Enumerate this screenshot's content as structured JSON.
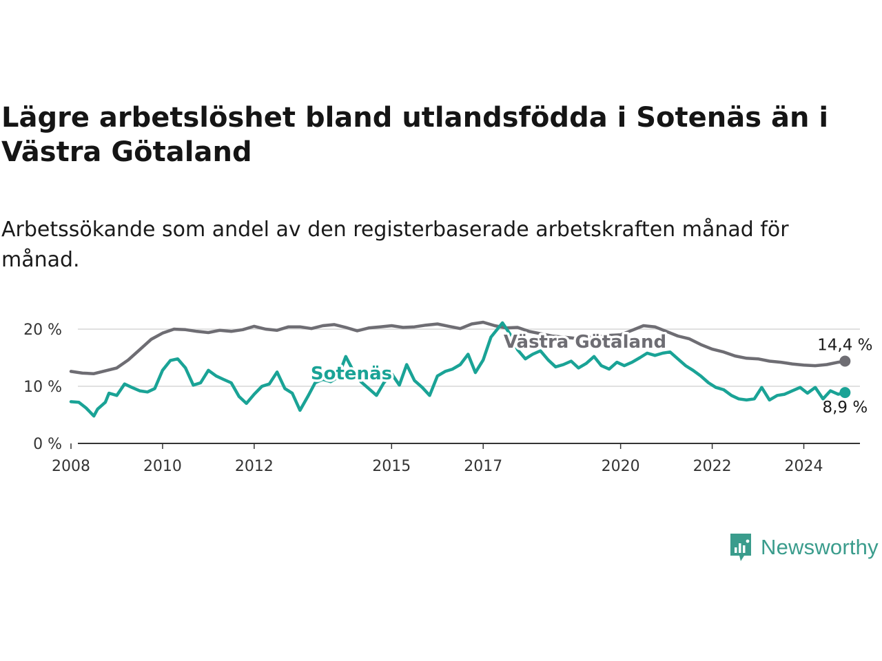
{
  "title": "Lägre arbetslöshet bland utlandsfödda i Sotenäs än i Västra Götaland",
  "subtitle": "Arbetssökande som andel av den registerbaserade arbetskraften månad för månad.",
  "brand": {
    "name": "Newsworthy",
    "color": "#3a9c8c"
  },
  "chart_data": {
    "type": "line",
    "xlim": [
      2008,
      2025
    ],
    "ylim": [
      0,
      20
    ],
    "y_ticks": [
      {
        "value": 0,
        "label": "0 %"
      },
      {
        "value": 10,
        "label": "10 %"
      },
      {
        "value": 20,
        "label": "20 %"
      }
    ],
    "x_ticks": [
      {
        "value": 2008,
        "label": "2008"
      },
      {
        "value": 2010,
        "label": "2010"
      },
      {
        "value": 2012,
        "label": "2012"
      },
      {
        "value": 2015,
        "label": "2015"
      },
      {
        "value": 2017,
        "label": "2017"
      },
      {
        "value": 2020,
        "label": "2020"
      },
      {
        "value": 2022,
        "label": "2022"
      },
      {
        "value": 2024,
        "label": "2024"
      }
    ],
    "grid": "horizontal",
    "series": [
      {
        "name": "Västra Götaland",
        "color": "#6e6d73",
        "end_label": "14,4 %",
        "points": [
          [
            2008.0,
            12.6
          ],
          [
            2008.25,
            12.3
          ],
          [
            2008.5,
            12.2
          ],
          [
            2008.75,
            12.7
          ],
          [
            2009.0,
            13.2
          ],
          [
            2009.25,
            14.6
          ],
          [
            2009.5,
            16.4
          ],
          [
            2009.75,
            18.2
          ],
          [
            2010.0,
            19.3
          ],
          [
            2010.25,
            20.0
          ],
          [
            2010.5,
            19.9
          ],
          [
            2010.75,
            19.6
          ],
          [
            2011.0,
            19.4
          ],
          [
            2011.25,
            19.8
          ],
          [
            2011.5,
            19.6
          ],
          [
            2011.75,
            19.9
          ],
          [
            2012.0,
            20.5
          ],
          [
            2012.25,
            20.0
          ],
          [
            2012.5,
            19.8
          ],
          [
            2012.75,
            20.4
          ],
          [
            2013.0,
            20.4
          ],
          [
            2013.25,
            20.1
          ],
          [
            2013.5,
            20.6
          ],
          [
            2013.75,
            20.8
          ],
          [
            2014.0,
            20.3
          ],
          [
            2014.25,
            19.7
          ],
          [
            2014.5,
            20.2
          ],
          [
            2014.75,
            20.4
          ],
          [
            2015.0,
            20.6
          ],
          [
            2015.25,
            20.3
          ],
          [
            2015.5,
            20.4
          ],
          [
            2015.75,
            20.7
          ],
          [
            2016.0,
            20.9
          ],
          [
            2016.25,
            20.5
          ],
          [
            2016.5,
            20.1
          ],
          [
            2016.75,
            20.9
          ],
          [
            2017.0,
            21.2
          ],
          [
            2017.25,
            20.6
          ],
          [
            2017.5,
            20.2
          ],
          [
            2017.75,
            20.3
          ],
          [
            2018.0,
            19.6
          ],
          [
            2018.25,
            19.2
          ],
          [
            2018.5,
            18.8
          ],
          [
            2018.75,
            18.6
          ],
          [
            2019.0,
            18.4
          ],
          [
            2019.25,
            18.5
          ],
          [
            2019.5,
            18.7
          ],
          [
            2019.75,
            18.9
          ],
          [
            2020.0,
            19.0
          ],
          [
            2020.25,
            19.8
          ],
          [
            2020.5,
            20.6
          ],
          [
            2020.75,
            20.4
          ],
          [
            2021.0,
            19.6
          ],
          [
            2021.25,
            18.8
          ],
          [
            2021.5,
            18.3
          ],
          [
            2021.75,
            17.3
          ],
          [
            2022.0,
            16.5
          ],
          [
            2022.25,
            16.0
          ],
          [
            2022.5,
            15.3
          ],
          [
            2022.75,
            14.9
          ],
          [
            2023.0,
            14.8
          ],
          [
            2023.25,
            14.4
          ],
          [
            2023.5,
            14.2
          ],
          [
            2023.75,
            13.9
          ],
          [
            2024.0,
            13.7
          ],
          [
            2024.25,
            13.6
          ],
          [
            2024.5,
            13.8
          ],
          [
            2024.75,
            14.2
          ],
          [
            2024.9,
            14.4
          ]
        ]
      },
      {
        "name": "Sotenäs",
        "color": "#1aa396",
        "end_label": "8,9 %",
        "points": [
          [
            2008.0,
            7.3
          ],
          [
            2008.17,
            7.2
          ],
          [
            2008.33,
            6.2
          ],
          [
            2008.5,
            4.8
          ],
          [
            2008.58,
            6.0
          ],
          [
            2008.75,
            7.2
          ],
          [
            2008.83,
            8.8
          ],
          [
            2009.0,
            8.4
          ],
          [
            2009.17,
            10.4
          ],
          [
            2009.33,
            9.8
          ],
          [
            2009.5,
            9.2
          ],
          [
            2009.67,
            9.0
          ],
          [
            2009.83,
            9.6
          ],
          [
            2010.0,
            12.8
          ],
          [
            2010.17,
            14.5
          ],
          [
            2010.33,
            14.8
          ],
          [
            2010.5,
            13.2
          ],
          [
            2010.67,
            10.2
          ],
          [
            2010.83,
            10.6
          ],
          [
            2011.0,
            12.8
          ],
          [
            2011.17,
            11.8
          ],
          [
            2011.33,
            11.2
          ],
          [
            2011.5,
            10.6
          ],
          [
            2011.67,
            8.2
          ],
          [
            2011.83,
            7.0
          ],
          [
            2012.0,
            8.6
          ],
          [
            2012.17,
            10.0
          ],
          [
            2012.33,
            10.4
          ],
          [
            2012.5,
            12.5
          ],
          [
            2012.67,
            9.6
          ],
          [
            2012.83,
            8.8
          ],
          [
            2013.0,
            5.8
          ],
          [
            2013.17,
            8.2
          ],
          [
            2013.33,
            10.6
          ],
          [
            2013.5,
            11.2
          ],
          [
            2013.67,
            10.8
          ],
          [
            2013.83,
            11.6
          ],
          [
            2014.0,
            15.2
          ],
          [
            2014.17,
            12.6
          ],
          [
            2014.33,
            10.8
          ],
          [
            2014.5,
            9.6
          ],
          [
            2014.67,
            8.4
          ],
          [
            2014.83,
            10.6
          ],
          [
            2015.0,
            12.2
          ],
          [
            2015.17,
            10.2
          ],
          [
            2015.33,
            13.8
          ],
          [
            2015.5,
            11.0
          ],
          [
            2015.67,
            9.8
          ],
          [
            2015.83,
            8.4
          ],
          [
            2016.0,
            11.8
          ],
          [
            2016.17,
            12.6
          ],
          [
            2016.33,
            13.0
          ],
          [
            2016.5,
            13.8
          ],
          [
            2016.67,
            15.6
          ],
          [
            2016.83,
            12.4
          ],
          [
            2017.0,
            14.6
          ],
          [
            2017.17,
            18.6
          ],
          [
            2017.33,
            20.2
          ],
          [
            2017.42,
            21.1
          ],
          [
            2017.58,
            19.2
          ],
          [
            2017.75,
            16.4
          ],
          [
            2017.92,
            14.8
          ],
          [
            2018.08,
            15.6
          ],
          [
            2018.25,
            16.2
          ],
          [
            2018.42,
            14.6
          ],
          [
            2018.58,
            13.4
          ],
          [
            2018.75,
            13.8
          ],
          [
            2018.92,
            14.4
          ],
          [
            2019.08,
            13.2
          ],
          [
            2019.25,
            14.0
          ],
          [
            2019.42,
            15.2
          ],
          [
            2019.58,
            13.6
          ],
          [
            2019.75,
            13.0
          ],
          [
            2019.92,
            14.2
          ],
          [
            2020.08,
            13.6
          ],
          [
            2020.25,
            14.2
          ],
          [
            2020.42,
            15.0
          ],
          [
            2020.58,
            15.8
          ],
          [
            2020.75,
            15.4
          ],
          [
            2020.92,
            15.8
          ],
          [
            2021.08,
            16.0
          ],
          [
            2021.25,
            14.8
          ],
          [
            2021.42,
            13.6
          ],
          [
            2021.58,
            12.8
          ],
          [
            2021.75,
            11.8
          ],
          [
            2021.92,
            10.6
          ],
          [
            2022.08,
            9.8
          ],
          [
            2022.25,
            9.4
          ],
          [
            2022.42,
            8.4
          ],
          [
            2022.58,
            7.8
          ],
          [
            2022.75,
            7.6
          ],
          [
            2022.92,
            7.8
          ],
          [
            2023.08,
            9.8
          ],
          [
            2023.25,
            7.6
          ],
          [
            2023.42,
            8.4
          ],
          [
            2023.58,
            8.6
          ],
          [
            2023.75,
            9.2
          ],
          [
            2023.92,
            9.8
          ],
          [
            2024.08,
            8.8
          ],
          [
            2024.25,
            9.8
          ],
          [
            2024.42,
            7.8
          ],
          [
            2024.58,
            9.2
          ],
          [
            2024.75,
            8.6
          ],
          [
            2024.9,
            8.9
          ]
        ]
      }
    ]
  }
}
